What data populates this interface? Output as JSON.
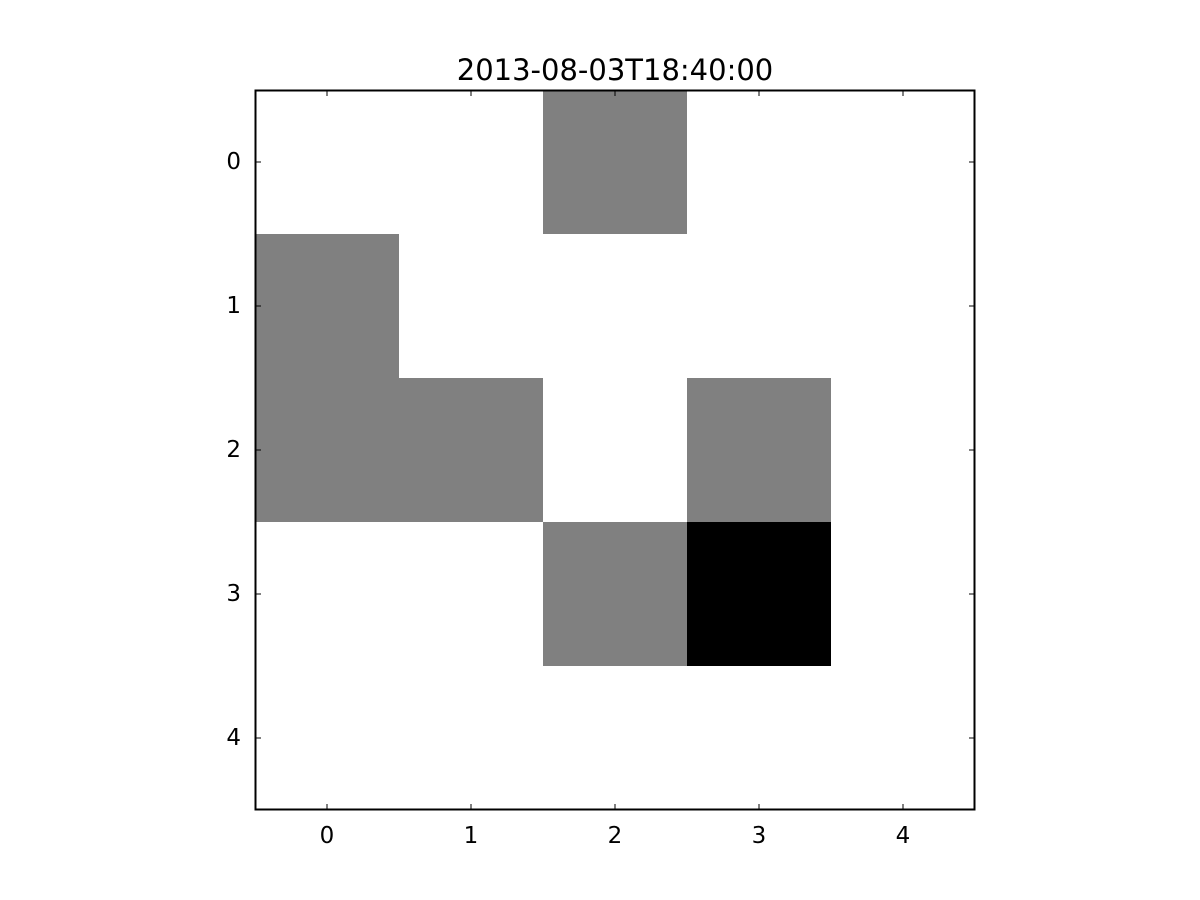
{
  "chart_data": {
    "type": "heatmap",
    "title": "2013-08-03T18:40:00",
    "xlabel": "",
    "ylabel": "",
    "x_ticks": [
      "0",
      "1",
      "2",
      "3",
      "4"
    ],
    "y_ticks": [
      "0",
      "1",
      "2",
      "3",
      "4"
    ],
    "xlim": [
      -0.5,
      4.5
    ],
    "ylim": [
      4.5,
      -0.5
    ],
    "colormap": "gray_r",
    "value_range": [
      0,
      2
    ],
    "grid": false,
    "values": [
      [
        0,
        0,
        1,
        0,
        0
      ],
      [
        1,
        0,
        0,
        0,
        0
      ],
      [
        1,
        1,
        0,
        1,
        0
      ],
      [
        0,
        0,
        1,
        2,
        0
      ],
      [
        0,
        0,
        0,
        0,
        0
      ]
    ]
  }
}
